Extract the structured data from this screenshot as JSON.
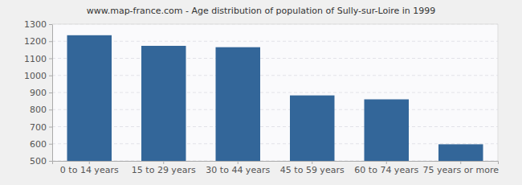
{
  "chart_data": {
    "type": "bar",
    "title": "www.map-france.com - Age distribution of population of Sully-sur-Loire in 1999",
    "categories": [
      "0 to 14 years",
      "15 to 29 years",
      "30 to 44 years",
      "45 to 59 years",
      "60 to 74 years",
      "75 years or more"
    ],
    "values": [
      1235,
      1173,
      1165,
      883,
      860,
      597
    ],
    "color": "#336699",
    "ylim": [
      500,
      1300
    ],
    "yticks": [
      500,
      600,
      700,
      800,
      900,
      1000,
      1100,
      1200,
      1300
    ],
    "grid": true
  }
}
